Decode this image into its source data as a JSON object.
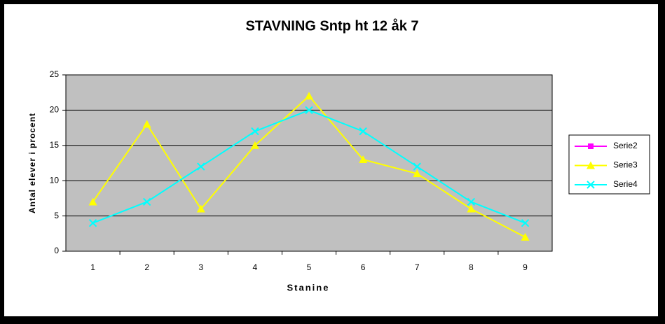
{
  "chart_data": {
    "type": "line",
    "title": "STAVNING Sntp ht 12 åk 7",
    "x_label": "Stanine",
    "y_label": "Antal elever i procent",
    "categories": [
      "1",
      "2",
      "3",
      "4",
      "5",
      "6",
      "7",
      "8",
      "9"
    ],
    "series": [
      {
        "name": "Serie2",
        "color": "#ff00ff",
        "marker": "square",
        "values": [
          null,
          null,
          null,
          null,
          null,
          null,
          null,
          null,
          null
        ]
      },
      {
        "name": "Serie3",
        "color": "#ffff00",
        "marker": "triangle",
        "values": [
          7,
          18,
          6,
          15,
          22,
          13,
          11,
          6,
          2
        ]
      },
      {
        "name": "Serie4",
        "color": "#00ffff",
        "marker": "x",
        "values": [
          4,
          7,
          12,
          17,
          20,
          17,
          12,
          7,
          4
        ]
      }
    ],
    "ylim": [
      0,
      25
    ],
    "yticks": [
      0,
      5,
      10,
      15,
      20,
      25
    ],
    "grid": true,
    "legend": "right"
  }
}
